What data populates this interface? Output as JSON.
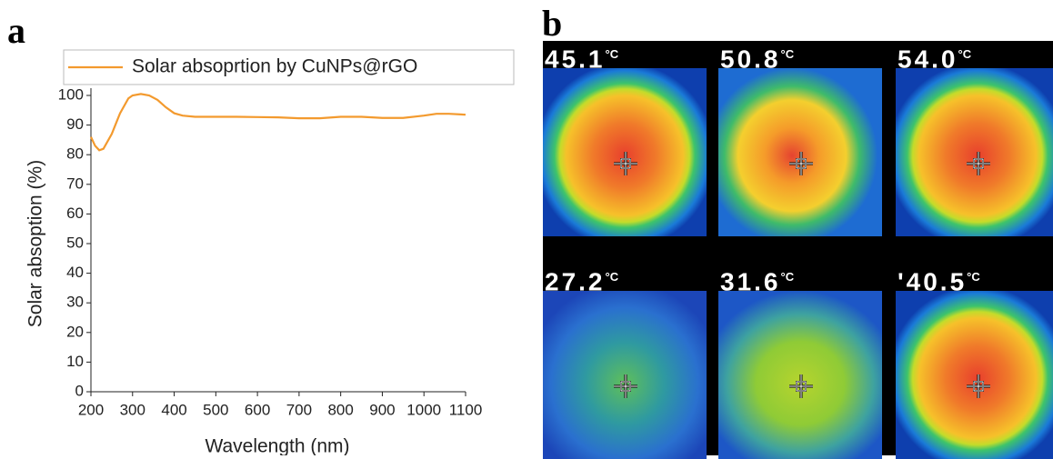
{
  "panel_labels": [
    "a",
    "b"
  ],
  "chart_data": {
    "type": "line",
    "x_label": "Wavelength (nm)",
    "y_label": "Solar absoption (%)",
    "x": [
      200,
      210,
      220,
      230,
      250,
      270,
      290,
      300,
      320,
      340,
      360,
      380,
      400,
      420,
      450,
      500,
      550,
      600,
      650,
      700,
      750,
      800,
      850,
      900,
      950,
      1000,
      1030,
      1060,
      1100
    ],
    "series": [
      {
        "name": "Solar absoprtion by CuNPs@rGO",
        "color": "#f39a2e",
        "values": [
          86,
          83,
          81.5,
          82,
          87,
          94,
          99,
          100,
          100.5,
          100,
          98.5,
          96,
          94,
          93.2,
          92.8,
          92.8,
          92.8,
          92.7,
          92.6,
          92.3,
          92.3,
          92.8,
          92.8,
          92.4,
          92.4,
          93.2,
          93.8,
          93.8,
          93.5
        ]
      }
    ],
    "xlim": [
      200,
      1100
    ],
    "ylim": [
      0,
      100
    ],
    "xticks": [
      200,
      300,
      400,
      500,
      600,
      700,
      800,
      900,
      1000,
      1100
    ],
    "yticks": [
      0,
      10,
      20,
      30,
      40,
      50,
      60,
      70,
      80,
      90,
      100
    ],
    "legend": "top"
  },
  "thermal_images": [
    {
      "temperature": "45.1",
      "unit": "°C"
    },
    {
      "temperature": "50.8",
      "unit": "°C"
    },
    {
      "temperature": "54.0",
      "unit": "°C"
    },
    {
      "temperature": "27.2",
      "unit": "°C"
    },
    {
      "temperature": "31.6",
      "unit": "°C"
    },
    {
      "temperature": "'40.5",
      "unit": "°C"
    }
  ]
}
